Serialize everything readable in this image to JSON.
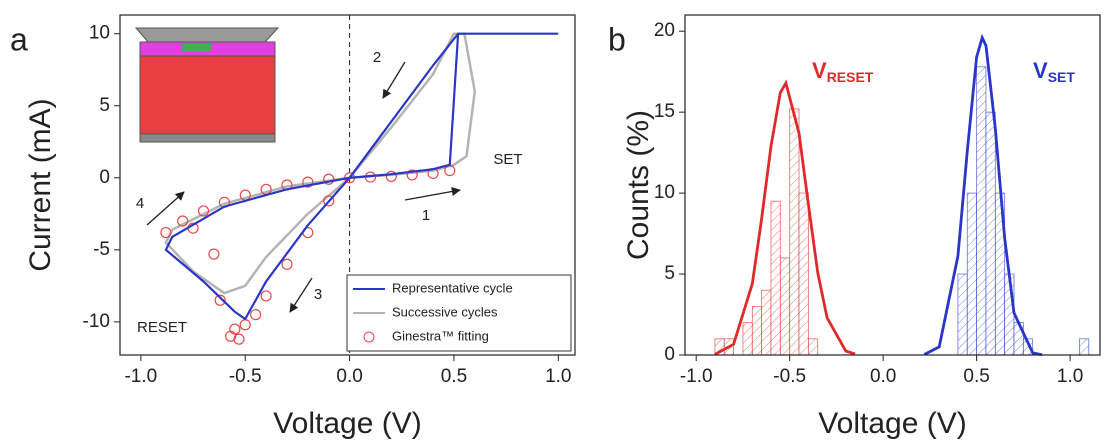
{
  "chart_data": [
    {
      "type": "line",
      "panel_label": "a",
      "xlabel": "Voltage (V)",
      "ylabel": "Current (mA)",
      "xlim": [
        -1.1,
        1.08
      ],
      "ylim": [
        -12.3,
        11.3
      ],
      "xticks": [
        {
          "value": -1,
          "label": "-1.0"
        },
        {
          "value": -0.5,
          "label": "-0.5"
        },
        {
          "value": 0,
          "label": "0.0"
        },
        {
          "value": 0.5,
          "label": "0.5"
        },
        {
          "value": 1,
          "label": "1.0"
        }
      ],
      "yticks": [
        -10,
        -5,
        0,
        5,
        10
      ],
      "legend": "lower right",
      "series": [
        {
          "name": "Representative cycle",
          "color": "#2a36c8",
          "x": [
            0,
            0.2,
            0.4,
            0.48,
            0.52,
            0.55,
            1.0,
            0.52,
            0.4,
            0.2,
            0,
            -0.2,
            -0.4,
            -0.5,
            -0.55,
            -0.7,
            -0.88,
            -0.85,
            -0.6,
            -0.3,
            0
          ],
          "values": [
            0,
            0.25,
            0.6,
            0.9,
            10,
            10,
            10,
            10,
            7.8,
            3.9,
            0,
            -3.3,
            -7.2,
            -9.8,
            -9.3,
            -7.2,
            -5.0,
            -4.1,
            -2.0,
            -0.8,
            0
          ]
        },
        {
          "name": "Successive cycles",
          "color": "#b4b4b4",
          "x": [
            0,
            0.2,
            0.4,
            0.5,
            0.56,
            0.6,
            0.55,
            0.5,
            0.4,
            0.2,
            0,
            -0.2,
            -0.4,
            -0.5,
            -0.6,
            -0.75,
            -0.88,
            -0.85,
            -0.6,
            -0.3,
            0
          ],
          "values": [
            0,
            0.2,
            0.5,
            0.9,
            1.5,
            6,
            10,
            10,
            7.2,
            3.5,
            0,
            -2.5,
            -5.5,
            -7.5,
            -8,
            -6.5,
            -4.5,
            -3.6,
            -1.8,
            -0.6,
            0
          ]
        },
        {
          "name": "Ginestra™ fitting",
          "color": "#e8494a",
          "marker": "circle",
          "x": [
            -0.88,
            -0.8,
            -0.7,
            -0.6,
            -0.5,
            -0.4,
            -0.3,
            -0.2,
            -0.1,
            0,
            0.1,
            0.2,
            0.3,
            0.4,
            0.48,
            -0.62,
            -0.55,
            -0.5,
            -0.45,
            -0.4,
            -0.3,
            -0.2,
            -0.1,
            -0.75,
            -0.65,
            -0.57,
            -0.53
          ],
          "values": [
            -3.8,
            -3.0,
            -2.3,
            -1.7,
            -1.2,
            -0.8,
            -0.5,
            -0.3,
            -0.1,
            0,
            0.05,
            0.1,
            0.2,
            0.3,
            0.5,
            -8.5,
            -10.5,
            -10.2,
            -9.5,
            -8.2,
            -6.0,
            -3.8,
            -1.6,
            -3.5,
            -5.3,
            -11,
            -11.2
          ]
        }
      ],
      "annotations": [
        "2",
        "4",
        "1",
        "3",
        "SET",
        "RESET"
      ]
    },
    {
      "type": "histogram",
      "panel_label": "b",
      "xlabel": "Voltage (V)",
      "ylabel": "Counts (%)",
      "xlim": [
        -1.06,
        1.16
      ],
      "ylim": [
        0,
        21
      ],
      "xticks": [
        {
          "value": -1,
          "label": "-1.0"
        },
        {
          "value": -0.5,
          "label": "-0.5"
        },
        {
          "value": 0,
          "label": "0.0"
        },
        {
          "value": 0.5,
          "label": "0.5"
        },
        {
          "value": 1,
          "label": "1.0"
        }
      ],
      "yticks": [
        0,
        5,
        10,
        15,
        20
      ],
      "series": [
        {
          "label_main": "V",
          "label_sub": "RESET",
          "color": "#e02a2a",
          "bins": [
            -0.9,
            -0.85,
            -0.8,
            -0.75,
            -0.7,
            -0.65,
            -0.6,
            -0.55,
            -0.5,
            -0.45,
            -0.4,
            -0.35
          ],
          "values": [
            1,
            1,
            0,
            2,
            3,
            4,
            9.5,
            6,
            15.2,
            10,
            1
          ],
          "fit_x": [
            -0.9,
            -0.8,
            -0.7,
            -0.65,
            -0.6,
            -0.55,
            -0.52,
            -0.45,
            -0.4,
            -0.35,
            -0.3,
            -0.2,
            -0.15
          ],
          "fit_values": [
            0.04,
            0.66,
            4.4,
            8.4,
            12.9,
            16.2,
            16.8,
            13.7,
            9.3,
            5.1,
            2.3,
            0.24,
            0.06
          ]
        },
        {
          "label_main": "V",
          "label_sub": "SET",
          "color": "#2a36c8",
          "bins": [
            0.35,
            0.4,
            0.45,
            0.5,
            0.55,
            0.6,
            0.65,
            0.7,
            0.75,
            0.8,
            0.85,
            0.9,
            0.95,
            1.0,
            1.05,
            1.1
          ],
          "values": [
            0,
            5,
            10,
            17.8,
            15,
            10,
            5,
            2,
            1,
            0,
            0,
            0,
            0,
            0,
            1
          ],
          "fit_x": [
            0.22,
            0.3,
            0.4,
            0.45,
            0.5,
            0.53,
            0.55,
            0.6,
            0.65,
            0.7,
            0.8,
            0.85
          ],
          "fit_values": [
            0.03,
            0.5,
            6.1,
            12.6,
            18.4,
            19.6,
            19.1,
            14,
            7.2,
            2.6,
            0.13,
            0.02
          ]
        }
      ]
    }
  ]
}
